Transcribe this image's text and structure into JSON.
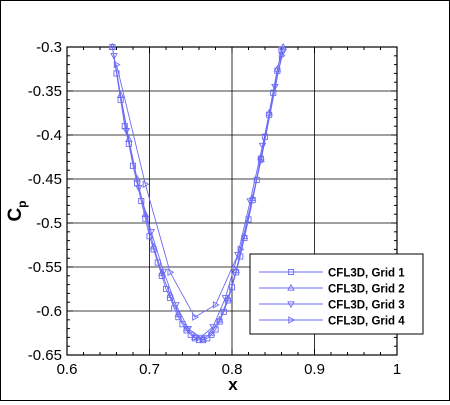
{
  "chart_data": {
    "type": "line",
    "xlabel": "x",
    "ylabel": "C",
    "ylabel_sub": "p",
    "xlim": [
      0.6,
      1.0
    ],
    "ylim": [
      -0.65,
      -0.3
    ],
    "x_ticks": [
      0.6,
      0.7,
      0.8,
      0.9,
      1.0
    ],
    "x_tick_labels": [
      "0.6",
      "0.7",
      "0.8",
      "0.9",
      "1"
    ],
    "y_ticks": [
      -0.3,
      -0.35,
      -0.4,
      -0.45,
      -0.5,
      -0.55,
      -0.6,
      -0.65
    ],
    "y_tick_labels": [
      "-0.3",
      "-0.35",
      "-0.4",
      "-0.45",
      "-0.5",
      "-0.55",
      "-0.6",
      "-0.65"
    ],
    "grid": true,
    "legend_position": "bottom-right",
    "line_color": "#6b6bf5",
    "series": [
      {
        "name": "CFL3D, Grid 1",
        "marker": "square",
        "x": [
          0.655,
          0.66,
          0.665,
          0.67,
          0.675,
          0.68,
          0.685,
          0.69,
          0.695,
          0.7,
          0.705,
          0.71,
          0.715,
          0.72,
          0.725,
          0.73,
          0.735,
          0.74,
          0.745,
          0.75,
          0.755,
          0.76,
          0.765,
          0.77,
          0.775,
          0.78,
          0.785,
          0.79,
          0.795,
          0.8,
          0.805,
          0.81,
          0.815,
          0.82,
          0.825,
          0.83,
          0.835,
          0.84,
          0.845,
          0.85,
          0.855,
          0.86
        ],
        "y": [
          -0.3,
          -0.33,
          -0.36,
          -0.39,
          -0.41,
          -0.435,
          -0.455,
          -0.475,
          -0.495,
          -0.515,
          -0.53,
          -0.545,
          -0.56,
          -0.575,
          -0.585,
          -0.597,
          -0.607,
          -0.615,
          -0.622,
          -0.627,
          -0.631,
          -0.633,
          -0.633,
          -0.631,
          -0.627,
          -0.621,
          -0.612,
          -0.601,
          -0.588,
          -0.573,
          -0.556,
          -0.538,
          -0.517,
          -0.496,
          -0.474,
          -0.451,
          -0.427,
          -0.402,
          -0.377,
          -0.352,
          -0.327,
          -0.303
        ]
      },
      {
        "name": "CFL3D, Grid 2",
        "marker": "triangle-up",
        "x": [
          0.655,
          0.665,
          0.675,
          0.685,
          0.695,
          0.705,
          0.715,
          0.725,
          0.735,
          0.745,
          0.755,
          0.765,
          0.775,
          0.785,
          0.795,
          0.805,
          0.815,
          0.825,
          0.835,
          0.845,
          0.855,
          0.862
        ],
        "y": [
          -0.3,
          -0.355,
          -0.405,
          -0.45,
          -0.49,
          -0.527,
          -0.557,
          -0.582,
          -0.604,
          -0.62,
          -0.63,
          -0.632,
          -0.625,
          -0.61,
          -0.586,
          -0.554,
          -0.515,
          -0.472,
          -0.425,
          -0.375,
          -0.325,
          -0.3
        ]
      },
      {
        "name": "CFL3D, Grid 3",
        "marker": "triangle-down",
        "x": [
          0.657,
          0.672,
          0.687,
          0.702,
          0.717,
          0.732,
          0.747,
          0.762,
          0.777,
          0.792,
          0.807,
          0.822,
          0.837,
          0.852,
          0.862
        ],
        "y": [
          -0.31,
          -0.395,
          -0.46,
          -0.51,
          -0.555,
          -0.593,
          -0.62,
          -0.63,
          -0.618,
          -0.585,
          -0.536,
          -0.475,
          -0.412,
          -0.345,
          -0.305
        ]
      },
      {
        "name": "CFL3D, Grid 4",
        "marker": "triangle-right",
        "x": [
          0.66,
          0.695,
          0.725,
          0.755,
          0.78,
          0.81,
          0.835,
          0.86
        ],
        "y": [
          -0.32,
          -0.456,
          -0.556,
          -0.607,
          -0.593,
          -0.53,
          -0.43,
          -0.31
        ]
      }
    ]
  }
}
